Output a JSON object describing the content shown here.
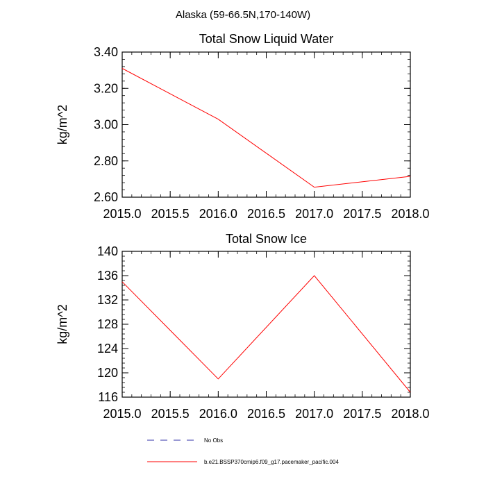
{
  "figure": {
    "suptitle": "Alaska (59-66.5N,170-140W)"
  },
  "chart_data": [
    {
      "type": "line",
      "title": "Total Snow Liquid Water",
      "xlabel": "",
      "ylabel": "kg/m^2",
      "xlim": [
        2015.0,
        2018.0
      ],
      "ylim": [
        2.6,
        3.4
      ],
      "xticks": [
        2015.0,
        2015.5,
        2016.0,
        2016.5,
        2017.0,
        2017.5,
        2018.0
      ],
      "xtick_labels": [
        "2015.0",
        "2015.5",
        "2016.0",
        "2016.5",
        "2017.0",
        "2017.5",
        "2018.0"
      ],
      "yticks": [
        2.6,
        2.8,
        3.0,
        3.2,
        3.4
      ],
      "ytick_labels": [
        "2.60",
        "2.80",
        "3.00",
        "3.20",
        "3.40"
      ],
      "grid": false,
      "series": [
        {
          "color": "#ff0000",
          "x": [
            2015.0,
            2016.0,
            2017.0,
            2018.0
          ],
          "values": [
            3.31,
            3.03,
            2.655,
            2.715
          ]
        }
      ]
    },
    {
      "type": "line",
      "title": "Total Snow Ice",
      "xlabel": "",
      "ylabel": "kg/m^2",
      "xlim": [
        2015.0,
        2018.0
      ],
      "ylim": [
        116,
        140
      ],
      "xticks": [
        2015.0,
        2015.5,
        2016.0,
        2016.5,
        2017.0,
        2017.5,
        2018.0
      ],
      "xtick_labels": [
        "2015.0",
        "2015.5",
        "2016.0",
        "2016.5",
        "2017.0",
        "2017.5",
        "2018.0"
      ],
      "yticks": [
        116,
        120,
        124,
        128,
        132,
        136,
        140
      ],
      "ytick_labels": [
        "116",
        "120",
        "124",
        "128",
        "132",
        "136",
        "140"
      ],
      "grid": false,
      "series": [
        {
          "color": "#ff0000",
          "x": [
            2015.0,
            2016.0,
            2017.0,
            2018.0
          ],
          "values": [
            135.0,
            119.0,
            136.0,
            116.8
          ]
        }
      ]
    }
  ],
  "legend": {
    "placement": "bottom-center",
    "items": [
      {
        "label": "No Obs",
        "color": "#3333aa",
        "style": "dashed"
      },
      {
        "label": "b.e21.BSSP370cmip6.f09_g17.pacemaker_pacific.004",
        "color": "#ff0000",
        "style": "solid"
      }
    ]
  }
}
